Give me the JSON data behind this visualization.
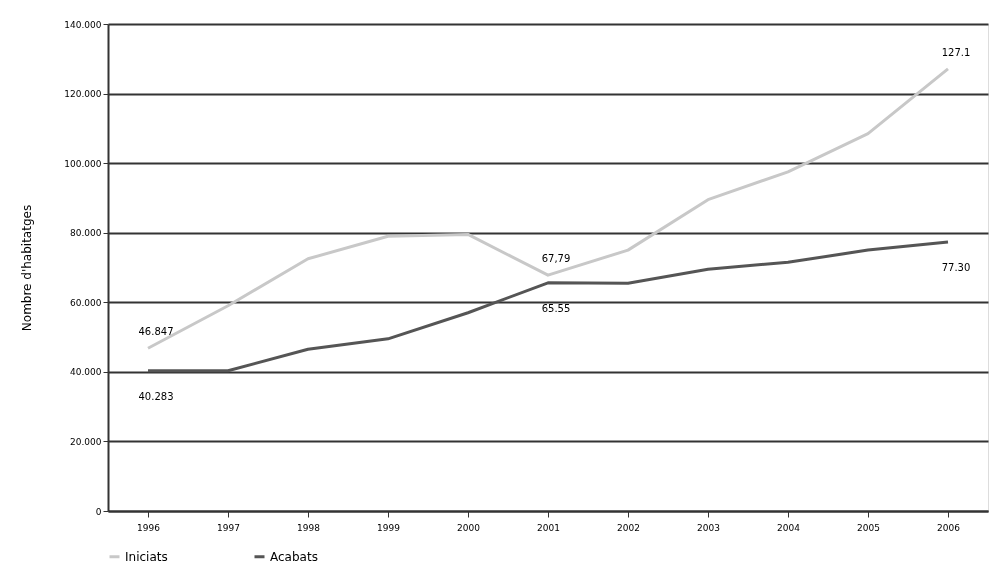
{
  "chart_data": {
    "type": "line",
    "ylabel": "Nombre d'habitatges",
    "categories": [
      "1996",
      "1997",
      "1998",
      "1999",
      "2000",
      "2001",
      "2002",
      "2003",
      "2004",
      "2005",
      "2006"
    ],
    "series": [
      {
        "name": "Iniciats",
        "color": "#c8c8c8",
        "values": [
          46.8,
          59,
          72.5,
          79,
          79.5,
          67.8,
          75,
          89.5,
          97.5,
          108.5,
          127.1
        ]
      },
      {
        "name": "Acabats",
        "color": "#555555",
        "values": [
          40.3,
          40.3,
          46.5,
          49.5,
          57,
          65.6,
          65.5,
          69.5,
          71.5,
          75,
          77.3
        ]
      }
    ],
    "ylim": [
      0,
      140
    ],
    "yticks": [
      0,
      {
        "value": 20,
        "label": "20.000"
      },
      {
        "value": 40,
        "label": "40.000"
      },
      {
        "value": 60,
        "label": "60.000"
      },
      {
        "value": 80,
        "label": "80.000"
      },
      {
        "value": 100,
        "label": "100.000"
      },
      {
        "value": 120,
        "label": "120.000"
      },
      {
        "value": 140,
        "label": "140.000"
      }
    ],
    "annotations": [
      {
        "text": "46.847",
        "x": "1996",
        "y": 46.8
      },
      {
        "text": "67,79",
        "x": "2001",
        "y": 67.8
      },
      {
        "text": "127.1",
        "x": "2006",
        "y": 127.1
      },
      {
        "text": "40.283",
        "x": "1996",
        "y": 40.3
      },
      {
        "text": "65.55",
        "x": "2001",
        "y": 65.6
      },
      {
        "text": "77.30",
        "x": "2006",
        "y": 77.3
      }
    ],
    "grid": "y",
    "legend": "bottom",
    "marker": "none",
    "line_style": "solid"
  }
}
